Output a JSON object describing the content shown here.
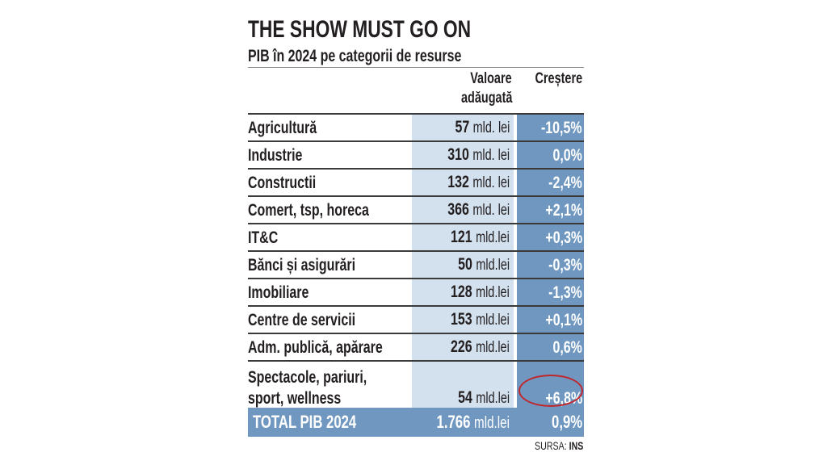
{
  "title": "THE SHOW MUST GO ON",
  "subtitle": "PIB în 2024 pe categorii de resurse",
  "headers": {
    "value": [
      "Valoare",
      "adăugată"
    ],
    "growth": "Creștere"
  },
  "rows": [
    {
      "label": "Agricultură",
      "value": "57",
      "unit": "mld. lei",
      "growth": "-10,5%"
    },
    {
      "label": "Industrie",
      "value": "310",
      "unit": "mld. lei",
      "growth": "0,0%"
    },
    {
      "label": "Constructii",
      "value": "132",
      "unit": "mld. lei",
      "growth": "-2,4%"
    },
    {
      "label": "Comert, tsp, horeca",
      "value": "366",
      "unit": "mld. lei",
      "growth": "+2,1%"
    },
    {
      "label": "IT&C",
      "value": "121",
      "unit": "mld.lei",
      "growth": "+0,3%"
    },
    {
      "label": "Bănci și asigurări",
      "value": "50",
      "unit": "mld.lei",
      "growth": "-0,3%"
    },
    {
      "label": "Imobiliare",
      "value": "128",
      "unit": "mld.lei",
      "growth": "-1,3%"
    },
    {
      "label": "Centre de servicii",
      "value": "153",
      "unit": "mld.lei",
      "growth": "+0,1%"
    },
    {
      "label": "Adm. publică, apărare",
      "value": "226",
      "unit": "mld.lei",
      "growth": "0,6%"
    },
    {
      "label": [
        "Spectacole, pariuri,",
        "sport, wellness"
      ],
      "value": "54",
      "unit": "mld.lei",
      "growth": "+6,8%"
    }
  ],
  "total": {
    "label": "TOTAL PIB 2024",
    "value": "1.766",
    "unit": "mld.lei",
    "growth": "0,9%"
  },
  "source": {
    "label": "SURSA:",
    "value": "INS"
  },
  "colors": {
    "value_bg": "#d3e0ee",
    "growth_bg": "#6f97c0",
    "highlight": "#c0272d"
  }
}
